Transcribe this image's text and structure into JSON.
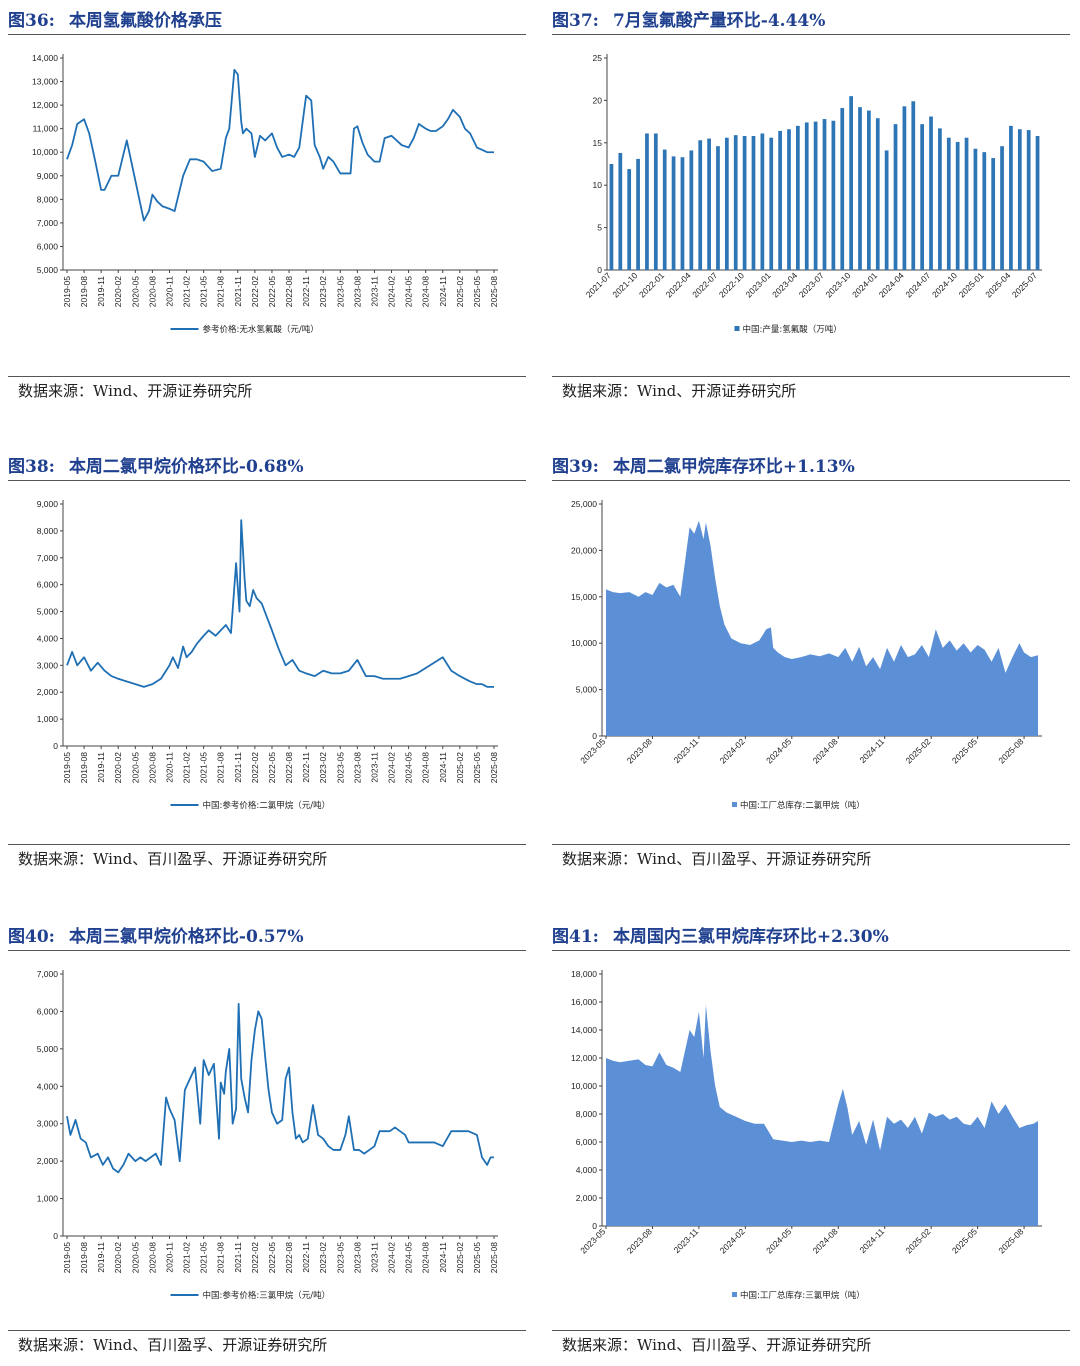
{
  "panels": [
    {
      "figure": "图36:",
      "heading": "本周氢氟酸价格承压",
      "source": "数据来源：Wind、开源证券研究所",
      "chart_data": {
        "type": "line",
        "legend": "参考价格:无水氢氟酸（元/吨）",
        "color": "#1F6FB4",
        "ylim": [
          5000,
          14000
        ],
        "ystep": 1000,
        "xlabels": [
          "2019-05",
          "2019-08",
          "2019-11",
          "2020-02",
          "2020-05",
          "2020-08",
          "2020-11",
          "2021-02",
          "2021-05",
          "2021-08",
          "2021-11",
          "2022-02",
          "2022-05",
          "2022-08",
          "2022-11",
          "2023-02",
          "2023-05",
          "2023-08",
          "2023-11",
          "2024-02",
          "2024-05",
          "2024-08",
          "2024-11",
          "2025-02",
          "2025-05",
          "2025-08"
        ],
        "x": [
          0,
          0.3,
          0.6,
          1,
          1.3,
          1.6,
          2,
          2.2,
          2.6,
          3,
          3.5,
          4,
          4.5,
          4.8,
          5,
          5.3,
          5.6,
          6,
          6.3,
          6.8,
          7.2,
          7.6,
          8,
          8.5,
          9,
          9.3,
          9.5,
          9.8,
          10,
          10.2,
          10.3,
          10.5,
          10.8,
          11,
          11.3,
          11.6,
          12,
          12.3,
          12.6,
          13,
          13.3,
          13.6,
          14,
          14.3,
          14.5,
          14.8,
          15,
          15.3,
          15.6,
          16,
          16.3,
          16.6,
          16.8,
          17,
          17.3,
          17.6,
          18,
          18.3,
          18.6,
          19,
          19.3,
          19.6,
          20,
          20.3,
          20.6,
          21,
          21.3,
          21.6,
          22,
          22.3,
          22.6,
          23,
          23.3,
          23.6,
          24,
          24.3,
          24.6,
          25
        ],
        "y": [
          9700,
          10300,
          11200,
          11400,
          10800,
          9800,
          8400,
          8400,
          9000,
          9000,
          10500,
          8800,
          7100,
          7500,
          8200,
          7900,
          7700,
          7600,
          7500,
          9000,
          9700,
          9700,
          9600,
          9200,
          9300,
          10600,
          11000,
          13500,
          13300,
          11300,
          10800,
          11000,
          10800,
          9800,
          10700,
          10500,
          10800,
          10200,
          9800,
          9900,
          9800,
          10200,
          12400,
          12200,
          10300,
          9800,
          9300,
          9800,
          9600,
          9100,
          9100,
          9100,
          11000,
          11100,
          10400,
          9900,
          9600,
          9600,
          10600,
          10700,
          10500,
          10300,
          10200,
          10600,
          11200,
          11000,
          10900,
          10900,
          11100,
          11400,
          11800,
          11500,
          11000,
          10800,
          10200,
          10100,
          10000,
          10000
        ]
      }
    },
    {
      "figure": "图37:",
      "heading": "7月氢氟酸产量环比-4.44%",
      "source": "数据来源：Wind、开源证券研究所",
      "chart_data": {
        "type": "bar",
        "legend": "中国:产量:氢氟酸（万吨）",
        "color": "#2E75B6",
        "ylim": [
          0,
          25
        ],
        "ystep": 5,
        "categories": [
          "2021-07",
          "2021-08",
          "2021-09",
          "2021-10",
          "2021-11",
          "2021-12",
          "2022-01",
          "2022-02",
          "2022-03",
          "2022-04",
          "2022-05",
          "2022-06",
          "2022-07",
          "2022-08",
          "2022-09",
          "2022-10",
          "2022-11",
          "2022-12",
          "2023-01",
          "2023-02",
          "2023-03",
          "2023-04",
          "2023-05",
          "2023-06",
          "2023-07",
          "2023-08",
          "2023-09",
          "2023-10",
          "2023-11",
          "2023-12",
          "2024-01",
          "2024-02",
          "2024-03",
          "2024-04",
          "2024-05",
          "2024-06",
          "2024-07",
          "2024-08",
          "2024-09",
          "2024-10",
          "2024-11",
          "2024-12",
          "2025-01",
          "2025-02",
          "2025-03",
          "2025-04",
          "2025-05",
          "2025-06",
          "2025-07"
        ],
        "xlabels": [
          "2021-07",
          "2021-10",
          "2022-01",
          "2022-04",
          "2022-07",
          "2022-10",
          "2023-01",
          "2023-04",
          "2023-07",
          "2023-10",
          "2024-01",
          "2024-04",
          "2024-07",
          "2024-10",
          "2025-01",
          "2025-04",
          "2025-07"
        ],
        "values": [
          12.5,
          13.8,
          11.9,
          13.1,
          16.1,
          16.1,
          14.2,
          13.4,
          13.3,
          14.1,
          15.3,
          15.5,
          14.6,
          15.6,
          15.9,
          15.8,
          15.8,
          16.1,
          15.6,
          16.4,
          16.6,
          17.0,
          17.4,
          17.5,
          17.8,
          17.6,
          19.1,
          20.5,
          19.2,
          18.8,
          17.9,
          14.1,
          17.2,
          19.3,
          19.9,
          17.2,
          18.1,
          16.7,
          15.6,
          15.1,
          15.6,
          14.3,
          13.9,
          13.2,
          14.6,
          17.0,
          16.6,
          16.5,
          15.8
        ]
      }
    },
    {
      "figure": "图38:",
      "heading": "本周二氯甲烷价格环比-0.68%",
      "source": "数据来源：Wind、百川盈孚、开源证券研究所",
      "chart_data": {
        "type": "line",
        "legend": "中国:参考价格:二氯甲烷（元/吨）",
        "color": "#1F6FB4",
        "ylim": [
          0,
          9000
        ],
        "ystep": 1000,
        "xlabels": [
          "2019-05",
          "2019-08",
          "2019-11",
          "2020-02",
          "2020-05",
          "2020-08",
          "2020-11",
          "2021-02",
          "2021-05",
          "2021-08",
          "2021-11",
          "2022-02",
          "2022-05",
          "2022-08",
          "2022-11",
          "2023-02",
          "2023-05",
          "2023-08",
          "2023-11",
          "2024-02",
          "2024-05",
          "2024-08",
          "2024-11",
          "2025-02",
          "2025-05",
          "2025-08"
        ],
        "x": [
          0,
          0.3,
          0.6,
          1,
          1.4,
          1.8,
          2.2,
          2.6,
          3,
          3.5,
          4,
          4.5,
          5,
          5.5,
          6,
          6.2,
          6.5,
          6.8,
          7,
          7.3,
          7.6,
          8,
          8.3,
          8.7,
          9,
          9.3,
          9.6,
          9.9,
          10.1,
          10.2,
          10.4,
          10.5,
          10.7,
          10.9,
          11.1,
          11.4,
          11.7,
          12,
          12.4,
          12.8,
          13.2,
          13.6,
          14,
          14.5,
          15,
          15.5,
          16,
          16.5,
          17,
          17.5,
          18,
          18.5,
          19,
          19.5,
          20,
          20.5,
          21,
          21.5,
          22,
          22.5,
          23,
          23.3,
          23.6,
          24,
          24.3,
          24.6,
          25
        ],
        "y": [
          3000,
          3500,
          3000,
          3300,
          2800,
          3100,
          2800,
          2600,
          2500,
          2400,
          2300,
          2200,
          2300,
          2500,
          3000,
          3300,
          2900,
          3700,
          3300,
          3500,
          3800,
          4100,
          4300,
          4100,
          4300,
          4500,
          4200,
          6800,
          5000,
          8400,
          6200,
          5400,
          5200,
          5800,
          5500,
          5300,
          4800,
          4300,
          3600,
          3000,
          3200,
          2800,
          2700,
          2600,
          2800,
          2700,
          2700,
          2800,
          3200,
          2600,
          2600,
          2500,
          2500,
          2500,
          2600,
          2700,
          2900,
          3100,
          3300,
          2800,
          2600,
          2500,
          2400,
          2300,
          2300,
          2200,
          2200
        ]
      }
    },
    {
      "figure": "图39:",
      "heading": "本周二氯甲烷库存环比+1.13%",
      "source": "数据来源：Wind、百川盈孚、开源证券研究所",
      "chart_data": {
        "type": "area",
        "legend": "中国:工厂总库存:二氯甲烷（吨）",
        "color": "#5B8FD6",
        "ylim": [
          0,
          25000
        ],
        "ystep": 5000,
        "xlabels": [
          "2023-05",
          "2023-08",
          "2023-11",
          "2024-02",
          "2024-05",
          "2024-08",
          "2024-11",
          "2025-02",
          "2025-05",
          "2025-08"
        ],
        "x": [
          0,
          0.15,
          0.3,
          0.5,
          0.7,
          0.85,
          1,
          1.15,
          1.3,
          1.45,
          1.6,
          1.8,
          1.9,
          2,
          2.1,
          2.15,
          2.25,
          2.35,
          2.45,
          2.55,
          2.7,
          2.9,
          3.1,
          3.3,
          3.45,
          3.55,
          3.6,
          3.7,
          3.85,
          4,
          4.2,
          4.4,
          4.6,
          4.8,
          5,
          5.15,
          5.3,
          5.45,
          5.6,
          5.75,
          5.9,
          6.05,
          6.2,
          6.35,
          6.5,
          6.65,
          6.8,
          6.95,
          7.1,
          7.25,
          7.4,
          7.55,
          7.7,
          7.85,
          8,
          8.15,
          8.3,
          8.45,
          8.6,
          8.75,
          8.9,
          9,
          9.15,
          9.3
        ],
        "y": [
          15800,
          15500,
          15400,
          15500,
          15000,
          15500,
          15200,
          16500,
          16000,
          16300,
          15000,
          22500,
          21800,
          23200,
          21200,
          23000,
          20500,
          17000,
          14000,
          12000,
          10500,
          10000,
          9800,
          10300,
          11500,
          11700,
          9500,
          9000,
          8500,
          8300,
          8500,
          8800,
          8600,
          8900,
          8500,
          9500,
          8000,
          9600,
          7500,
          8500,
          7200,
          9500,
          8000,
          9800,
          8500,
          8800,
          9800,
          8500,
          11500,
          9500,
          10300,
          9200,
          10000,
          9000,
          9800,
          9300,
          8000,
          9500,
          6800,
          8500,
          10000,
          9000,
          8500,
          8700
        ]
      }
    },
    {
      "figure": "图40:",
      "heading": "本周三氯甲烷价格环比-0.57%",
      "source": "数据来源：Wind、百川盈孚、开源证券研究所",
      "chart_data": {
        "type": "line",
        "legend": "中国:参考价格:三氯甲烷（元/吨）",
        "color": "#1F6FB4",
        "ylim": [
          0,
          7000
        ],
        "ystep": 1000,
        "xlabels": [
          "2019-05",
          "2019-08",
          "2019-11",
          "2020-02",
          "2020-05",
          "2020-08",
          "2020-11",
          "2021-02",
          "2021-05",
          "2021-08",
          "2021-11",
          "2022-02",
          "2022-05",
          "2022-08",
          "2022-11",
          "2023-02",
          "2023-05",
          "2023-08",
          "2023-11",
          "2024-02",
          "2024-05",
          "2024-08",
          "2024-11",
          "2025-02",
          "2025-05",
          "2025-08"
        ],
        "x": [
          0,
          0.2,
          0.5,
          0.8,
          1.1,
          1.4,
          1.8,
          2.1,
          2.4,
          2.7,
          3,
          3.3,
          3.6,
          4,
          4.3,
          4.6,
          4.9,
          5.2,
          5.5,
          5.8,
          6,
          6.3,
          6.6,
          6.9,
          7.2,
          7.5,
          7.8,
          8,
          8.3,
          8.6,
          8.9,
          9,
          9.2,
          9.3,
          9.5,
          9.7,
          9.9,
          10.05,
          10.2,
          10.4,
          10.6,
          10.8,
          11,
          11.2,
          11.4,
          11.6,
          11.8,
          12,
          12.3,
          12.6,
          12.8,
          13,
          13.2,
          13.4,
          13.6,
          13.8,
          14.1,
          14.4,
          14.7,
          15,
          15.3,
          15.6,
          16,
          16.3,
          16.5,
          16.8,
          17.1,
          17.4,
          17.7,
          18,
          18.3,
          18.6,
          18.9,
          19.2,
          19.5,
          19.8,
          20,
          20.5,
          21,
          21.5,
          22,
          22.5,
          23,
          23.5,
          24,
          24.3,
          24.6,
          24.8,
          25
        ],
        "y": [
          3200,
          2700,
          3100,
          2600,
          2500,
          2100,
          2200,
          1900,
          2100,
          1800,
          1700,
          1900,
          2200,
          2000,
          2100,
          2000,
          2100,
          2200,
          1900,
          3700,
          3400,
          3100,
          2000,
          3900,
          4200,
          4500,
          3000,
          4700,
          4300,
          4600,
          2600,
          4100,
          3800,
          4400,
          5000,
          3000,
          3400,
          6200,
          4200,
          3700,
          3300,
          4700,
          5500,
          6000,
          5800,
          4800,
          3900,
          3300,
          3000,
          3100,
          4200,
          4500,
          3300,
          2600,
          2700,
          2500,
          2600,
          3500,
          2700,
          2600,
          2400,
          2300,
          2300,
          2700,
          3200,
          2300,
          2300,
          2200,
          2300,
          2400,
          2800,
          2800,
          2800,
          2900,
          2800,
          2700,
          2500,
          2500,
          2500,
          2500,
          2400,
          2800,
          2800,
          2800,
          2700,
          2100,
          1900,
          2100,
          2100
        ]
      }
    },
    {
      "figure": "图41:",
      "heading": "本周国内三氯甲烷库存环比+2.30%",
      "source": "数据来源：Wind、百川盈孚、开源证券研究所",
      "chart_data": {
        "type": "area",
        "legend": "中国:工厂总库存:三氯甲烷（吨）",
        "color": "#5B8FD6",
        "ylim": [
          0,
          18000
        ],
        "ystep": 2000,
        "xlabels": [
          "2023-05",
          "2023-08",
          "2023-11",
          "2024-02",
          "2024-05",
          "2024-08",
          "2024-11",
          "2025-02",
          "2025-05",
          "2025-08"
        ],
        "x": [
          0,
          0.15,
          0.3,
          0.5,
          0.7,
          0.85,
          1,
          1.15,
          1.3,
          1.45,
          1.6,
          1.8,
          1.9,
          2,
          2.1,
          2.15,
          2.25,
          2.35,
          2.45,
          2.6,
          2.8,
          3,
          3.2,
          3.4,
          3.6,
          3.8,
          4,
          4.2,
          4.4,
          4.6,
          4.8,
          5,
          5.1,
          5.2,
          5.3,
          5.45,
          5.6,
          5.75,
          5.9,
          6.05,
          6.2,
          6.35,
          6.5,
          6.65,
          6.8,
          6.95,
          7.1,
          7.25,
          7.4,
          7.55,
          7.7,
          7.85,
          8,
          8.15,
          8.3,
          8.45,
          8.6,
          8.75,
          8.9,
          9.05,
          9.2,
          9.3
        ],
        "y": [
          12000,
          11800,
          11700,
          11800,
          11900,
          11500,
          11400,
          12400,
          11500,
          11300,
          11000,
          14000,
          13500,
          15300,
          12000,
          15800,
          12500,
          10000,
          8500,
          8100,
          7800,
          7500,
          7300,
          7300,
          6200,
          6100,
          6000,
          6100,
          6000,
          6100,
          6000,
          8700,
          9800,
          8400,
          6500,
          7500,
          5800,
          7600,
          5400,
          7800,
          7300,
          7600,
          7000,
          7800,
          6600,
          8100,
          7800,
          8000,
          7600,
          7800,
          7300,
          7200,
          7800,
          7000,
          8900,
          8000,
          8700,
          7800,
          7000,
          7200,
          7300,
          7500
        ]
      }
    }
  ]
}
